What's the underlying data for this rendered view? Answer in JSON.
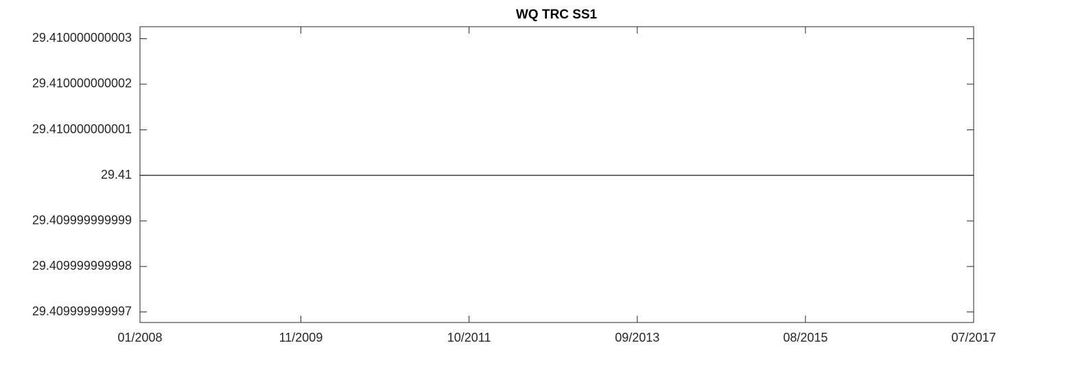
{
  "chart_data": {
    "type": "line",
    "title": "WQ TRC SS1",
    "x": [
      "2008-01",
      "2017-07"
    ],
    "values": [
      29.41,
      29.41
    ],
    "color": "#000000",
    "xlim": [
      "2008-01",
      "2017-07"
    ],
    "xticks": [
      {
        "value": "2008-01",
        "label": "01/2008"
      },
      {
        "value": "2009-11",
        "label": "11/2009"
      },
      {
        "value": "2011-10",
        "label": "10/2011"
      },
      {
        "value": "2013-09",
        "label": "09/2013"
      },
      {
        "value": "2015-08",
        "label": "08/2015"
      },
      {
        "value": "2017-07",
        "label": "07/2017"
      }
    ],
    "ylim": [
      29.40999999999677,
      29.41000000000326
    ],
    "yticks": [
      29.409999999997,
      29.409999999998,
      29.409999999999,
      29.41,
      29.410000000001,
      29.410000000002,
      29.410000000003
    ],
    "grid": false
  }
}
